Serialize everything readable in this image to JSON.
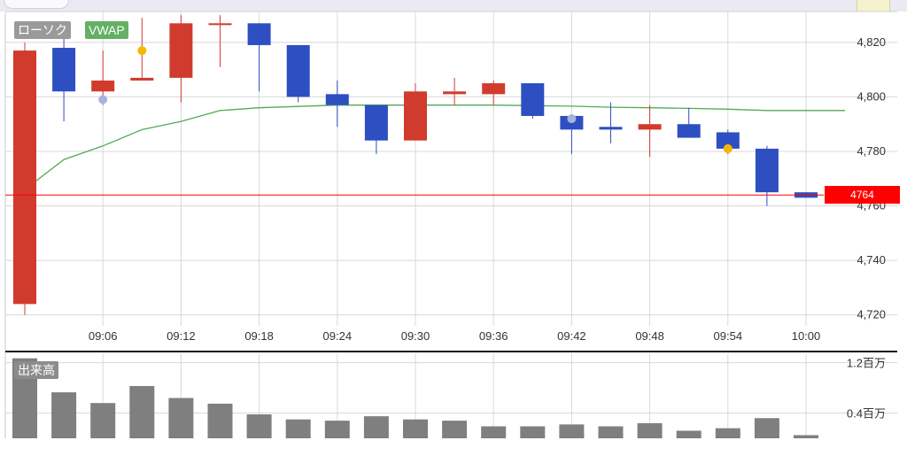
{
  "legend": {
    "candle_label": "ローソク",
    "vwap_label": "VWAP",
    "volume_label": "出来高"
  },
  "current_price_label": "4764",
  "chart_data": {
    "type": "candlestick",
    "x_ticks": [
      "09:06",
      "09:12",
      "09:18",
      "09:24",
      "09:30",
      "09:36",
      "09:42",
      "09:48",
      "09:54",
      "10:00"
    ],
    "price_ticks": [
      {
        "value": 4720,
        "label": "4,720"
      },
      {
        "value": 4740,
        "label": "4,740"
      },
      {
        "value": 4760,
        "label": "4,760"
      },
      {
        "value": 4780,
        "label": "4,780"
      },
      {
        "value": 4800,
        "label": "4,800"
      },
      {
        "value": 4820,
        "label": "4,820"
      }
    ],
    "volume_ticks": [
      {
        "value": 0.4,
        "label": "0.4百万"
      },
      {
        "value": 1.2,
        "label": "1.2百万"
      }
    ],
    "price_range": [
      4716,
      4831
    ],
    "volume_range": [
      0,
      1.35
    ],
    "time_range": [
      0,
      63
    ],
    "candles": [
      {
        "t": 0,
        "open": 4724,
        "high": 4820,
        "low": 4720,
        "close": 4817
      },
      {
        "t": 3,
        "open": 4818,
        "high": 4824,
        "low": 4791,
        "close": 4802
      },
      {
        "t": 6,
        "open": 4802,
        "high": 4817,
        "low": 4797,
        "close": 4806
      },
      {
        "t": 9,
        "open": 4806,
        "high": 4829,
        "low": 4806,
        "close": 4807
      },
      {
        "t": 12,
        "open": 4807,
        "high": 4830,
        "low": 4798,
        "close": 4827
      },
      {
        "t": 15,
        "open": 4827,
        "high": 4830,
        "low": 4811,
        "close": 4827
      },
      {
        "t": 18,
        "open": 4827,
        "high": 4827,
        "low": 4802,
        "close": 4819
      },
      {
        "t": 21,
        "open": 4819,
        "high": 4819,
        "low": 4798,
        "close": 4800
      },
      {
        "t": 24,
        "open": 4801,
        "high": 4806,
        "low": 4789,
        "close": 4797
      },
      {
        "t": 27,
        "open": 4797,
        "high": 4797,
        "low": 4779,
        "close": 4784
      },
      {
        "t": 30,
        "open": 4784,
        "high": 4805,
        "low": 4784,
        "close": 4802
      },
      {
        "t": 33,
        "open": 4801,
        "high": 4807,
        "low": 4797,
        "close": 4802
      },
      {
        "t": 36,
        "open": 4801,
        "high": 4806,
        "low": 4797,
        "close": 4805
      },
      {
        "t": 39,
        "open": 4805,
        "high": 4805,
        "low": 4792,
        "close": 4793
      },
      {
        "t": 42,
        "open": 4793,
        "high": 4793,
        "low": 4779,
        "close": 4788
      },
      {
        "t": 45,
        "open": 4789,
        "high": 4798,
        "low": 4783,
        "close": 4788
      },
      {
        "t": 48,
        "open": 4788,
        "high": 4797,
        "low": 4778,
        "close": 4790
      },
      {
        "t": 51,
        "open": 4790,
        "high": 4796,
        "low": 4785,
        "close": 4785
      },
      {
        "t": 54,
        "open": 4787,
        "high": 4788,
        "low": 4779,
        "close": 4781
      },
      {
        "t": 57,
        "open": 4781,
        "high": 4782,
        "low": 4760,
        "close": 4765
      },
      {
        "t": 60,
        "open": 4765,
        "high": 4765,
        "low": 4763,
        "close": 4763
      }
    ],
    "vwap": [
      {
        "t": 0,
        "v": 4766
      },
      {
        "t": 3,
        "v": 4777
      },
      {
        "t": 6,
        "v": 4782
      },
      {
        "t": 9,
        "v": 4788
      },
      {
        "t": 12,
        "v": 4791
      },
      {
        "t": 15,
        "v": 4795
      },
      {
        "t": 18,
        "v": 4796
      },
      {
        "t": 21,
        "v": 4796.5
      },
      {
        "t": 24,
        "v": 4797
      },
      {
        "t": 27,
        "v": 4797
      },
      {
        "t": 30,
        "v": 4797
      },
      {
        "t": 33,
        "v": 4797
      },
      {
        "t": 36,
        "v": 4797
      },
      {
        "t": 39,
        "v": 4796.8
      },
      {
        "t": 42,
        "v": 4796.6
      },
      {
        "t": 45,
        "v": 4796.2
      },
      {
        "t": 48,
        "v": 4796
      },
      {
        "t": 51,
        "v": 4795.8
      },
      {
        "t": 54,
        "v": 4795.5
      },
      {
        "t": 57,
        "v": 4795
      },
      {
        "t": 60,
        "v": 4795
      },
      {
        "t": 63,
        "v": 4795
      }
    ],
    "volume": [
      {
        "t": 0,
        "v": 1.27
      },
      {
        "t": 3,
        "v": 0.73
      },
      {
        "t": 6,
        "v": 0.56
      },
      {
        "t": 9,
        "v": 0.83
      },
      {
        "t": 12,
        "v": 0.64
      },
      {
        "t": 15,
        "v": 0.55
      },
      {
        "t": 18,
        "v": 0.38
      },
      {
        "t": 21,
        "v": 0.3
      },
      {
        "t": 24,
        "v": 0.28
      },
      {
        "t": 27,
        "v": 0.35
      },
      {
        "t": 30,
        "v": 0.3
      },
      {
        "t": 33,
        "v": 0.28
      },
      {
        "t": 36,
        "v": 0.19
      },
      {
        "t": 39,
        "v": 0.19
      },
      {
        "t": 42,
        "v": 0.22
      },
      {
        "t": 45,
        "v": 0.19
      },
      {
        "t": 48,
        "v": 0.24
      },
      {
        "t": 51,
        "v": 0.12
      },
      {
        "t": 54,
        "v": 0.16
      },
      {
        "t": 57,
        "v": 0.32
      },
      {
        "t": 60,
        "v": 0.05
      }
    ],
    "markers": [
      {
        "t": 6,
        "price": 4799,
        "kind": "lavender-dot"
      },
      {
        "t": 9,
        "price": 4817,
        "kind": "gold-dot"
      },
      {
        "t": 42,
        "price": 4792,
        "kind": "lavender-dot"
      },
      {
        "t": 54,
        "price": 4781,
        "kind": "gold-dot"
      }
    ],
    "current_price": 4764,
    "colors": {
      "up": "#d13b2d",
      "down": "#2e4fc1",
      "vwap": "#55a955",
      "volume": "#7f7f7f",
      "current_price": "#ff0000",
      "grid": "#d8d8d8",
      "gold_dot": "#f5b700",
      "lavender_dot": "#a8b3dd"
    }
  }
}
